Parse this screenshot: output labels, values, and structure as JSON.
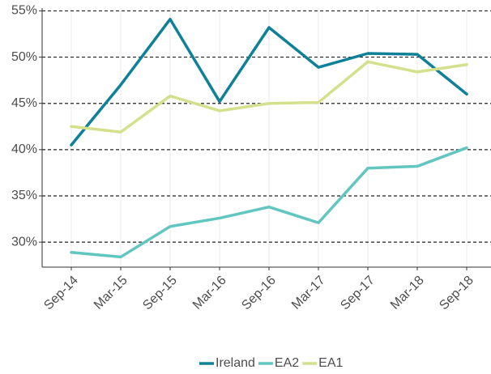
{
  "chart_data": {
    "type": "line",
    "categories": [
      "Sep-14",
      "Mar-15",
      "Sep-15",
      "Mar-16",
      "Sep-16",
      "Mar-17",
      "Sep-17",
      "Mar-18",
      "Sep-18"
    ],
    "series": [
      {
        "name": "Ireland",
        "color": "#0e8098",
        "values": [
          40.5,
          47.0,
          54.1,
          45.2,
          53.2,
          48.9,
          50.4,
          50.3,
          46.0
        ]
      },
      {
        "name": "EA2",
        "color": "#62c6c0",
        "values": [
          28.9,
          28.4,
          31.7,
          32.6,
          33.8,
          32.1,
          38.0,
          38.2,
          40.2
        ]
      },
      {
        "name": "EA1",
        "color": "#d4e08c",
        "values": [
          42.5,
          41.9,
          45.8,
          44.2,
          45.0,
          45.1,
          49.5,
          48.4,
          49.2
        ]
      }
    ],
    "ylim": [
      27.3,
      55.3
    ],
    "yticks": [
      {
        "value": 30,
        "label": "30%"
      },
      {
        "value": 35,
        "label": "35%"
      },
      {
        "value": 40,
        "label": "40%"
      },
      {
        "value": 45,
        "label": "45%"
      },
      {
        "value": 50,
        "label": "50%"
      },
      {
        "value": 55,
        "label": "55%"
      }
    ],
    "grid": true,
    "legend": "bottom"
  }
}
